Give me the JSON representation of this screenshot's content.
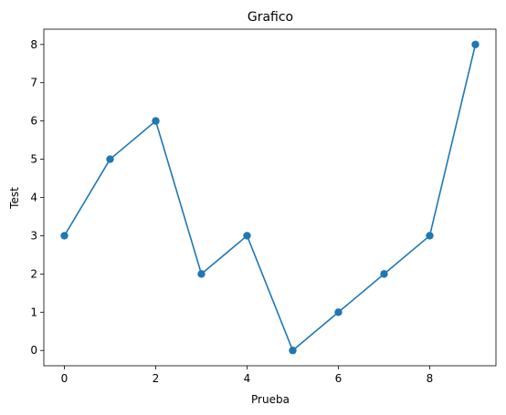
{
  "chart_data": {
    "type": "line",
    "title": "Grafico",
    "xlabel": "Prueba",
    "ylabel": "Test",
    "x": [
      0,
      1,
      2,
      3,
      4,
      5,
      6,
      7,
      8,
      9
    ],
    "series": [
      {
        "values": [
          3,
          5,
          6,
          2,
          3,
          0,
          1,
          2,
          3,
          8
        ],
        "color": "#1f77b4",
        "marker": "circle"
      }
    ],
    "xticks": [
      0,
      2,
      4,
      6,
      8
    ],
    "yticks": [
      0,
      1,
      2,
      3,
      4,
      5,
      6,
      7,
      8
    ],
    "xlim": [
      -0.45,
      9.45
    ],
    "ylim": [
      -0.4,
      8.4
    ],
    "grid": false,
    "legend": false
  }
}
